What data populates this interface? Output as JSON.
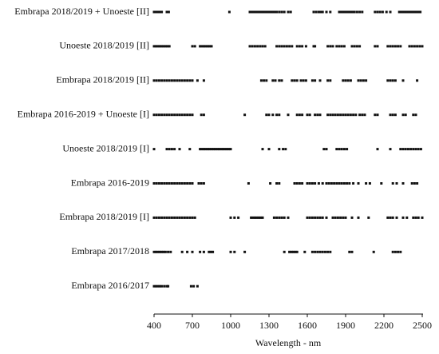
{
  "chart_data": {
    "type": "strip",
    "x_label": "Wavelength - nm",
    "xlim": [
      400,
      2500
    ],
    "xticks": [
      400,
      700,
      1000,
      1300,
      1600,
      1900,
      2200,
      2500
    ],
    "color": "#111111",
    "categories": [
      "Embrapa 2018/2019 + Unoeste [II]",
      "Unoeste 2018/2019 [II]",
      "Embrapa 2018/2019 [II]",
      "Embrapa 2016-2019 + Unoeste [I]",
      "Unoeste 2018/2019 [I]",
      "Embrapa 2016-2019",
      "Embrapa 2018/2019 [I]",
      "Embrapa 2017/2018",
      "Embrapa 2016/2017"
    ],
    "points": [
      [
        400,
        415,
        430,
        445,
        460,
        500,
        515,
        990,
        1150,
        1165,
        1180,
        1195,
        1210,
        1225,
        1240,
        1255,
        1270,
        1285,
        1300,
        1315,
        1330,
        1345,
        1360,
        1380,
        1400,
        1420,
        1450,
        1470,
        1650,
        1670,
        1690,
        1705,
        1720,
        1750,
        1780,
        1850,
        1865,
        1880,
        1895,
        1910,
        1925,
        1940,
        1955,
        1970,
        1990,
        2010,
        2030,
        2130,
        2150,
        2170,
        2190,
        2220,
        2250,
        2320,
        2335,
        2350,
        2365,
        2380,
        2395,
        2410,
        2425,
        2440,
        2455,
        2470,
        2485
      ],
      [
        400,
        415,
        430,
        445,
        460,
        475,
        490,
        505,
        520,
        700,
        720,
        760,
        775,
        790,
        805,
        820,
        835,
        850,
        1150,
        1170,
        1190,
        1210,
        1230,
        1250,
        1270,
        1360,
        1380,
        1400,
        1420,
        1440,
        1460,
        1480,
        1520,
        1540,
        1560,
        1590,
        1650,
        1660,
        1760,
        1780,
        1800,
        1830,
        1850,
        1870,
        1890,
        1950,
        1970,
        1990,
        2010,
        2130,
        2150,
        2230,
        2250,
        2270,
        2290,
        2310,
        2330,
        2400,
        2420,
        2440,
        2460,
        2480,
        2500
      ],
      [
        400,
        420,
        440,
        460,
        480,
        500,
        520,
        540,
        560,
        580,
        600,
        620,
        640,
        660,
        680,
        700,
        740,
        790,
        1240,
        1260,
        1280,
        1330,
        1350,
        1380,
        1400,
        1480,
        1500,
        1520,
        1550,
        1570,
        1590,
        1640,
        1660,
        1700,
        1760,
        1780,
        1880,
        1900,
        1920,
        1940,
        2000,
        2020,
        2040,
        2060,
        2230,
        2250,
        2270,
        2290,
        2350,
        2460
      ],
      [
        400,
        420,
        440,
        460,
        480,
        500,
        520,
        540,
        560,
        580,
        600,
        620,
        640,
        660,
        680,
        700,
        770,
        790,
        1110,
        1280,
        1300,
        1330,
        1360,
        1380,
        1450,
        1520,
        1540,
        1560,
        1600,
        1620,
        1660,
        1680,
        1700,
        1760,
        1780,
        1800,
        1820,
        1840,
        1860,
        1880,
        1900,
        1920,
        1940,
        1960,
        1980,
        2010,
        2030,
        2050,
        2130,
        2150,
        2250,
        2270,
        2290,
        2350,
        2370,
        2430,
        2450
      ],
      [
        400,
        500,
        520,
        540,
        560,
        600,
        680,
        760,
        775,
        790,
        805,
        820,
        835,
        850,
        865,
        880,
        895,
        910,
        925,
        940,
        955,
        970,
        985,
        1000,
        1250,
        1300,
        1380,
        1410,
        1430,
        1730,
        1750,
        1830,
        1850,
        1870,
        1890,
        1910,
        2150,
        2250,
        2330,
        2350,
        2370,
        2390,
        2410,
        2430,
        2450,
        2470,
        2490
      ],
      [
        400,
        420,
        440,
        460,
        480,
        500,
        520,
        540,
        560,
        580,
        600,
        620,
        640,
        660,
        680,
        700,
        750,
        770,
        790,
        1140,
        1310,
        1360,
        1380,
        1500,
        1520,
        1540,
        1560,
        1600,
        1620,
        1640,
        1660,
        1690,
        1720,
        1750,
        1770,
        1790,
        1810,
        1830,
        1850,
        1870,
        1890,
        1910,
        1930,
        1960,
        2000,
        2060,
        2090,
        2180,
        2270,
        2300,
        2350,
        2420,
        2440,
        2460
      ],
      [
        400,
        420,
        440,
        460,
        480,
        500,
        520,
        540,
        560,
        580,
        600,
        620,
        640,
        660,
        680,
        700,
        720,
        1000,
        1030,
        1060,
        1160,
        1175,
        1190,
        1205,
        1220,
        1235,
        1250,
        1340,
        1360,
        1380,
        1400,
        1420,
        1450,
        1600,
        1620,
        1640,
        1660,
        1680,
        1700,
        1720,
        1750,
        1800,
        1820,
        1840,
        1860,
        1880,
        1900,
        1950,
        2000,
        2080,
        2230,
        2250,
        2270,
        2300,
        2350,
        2380,
        2430,
        2450,
        2470,
        2500
      ],
      [
        400,
        415,
        430,
        445,
        460,
        475,
        490,
        510,
        530,
        620,
        660,
        700,
        760,
        790,
        830,
        845,
        860,
        1000,
        1030,
        1110,
        1420,
        1460,
        1475,
        1490,
        1505,
        1520,
        1580,
        1640,
        1660,
        1680,
        1700,
        1720,
        1740,
        1760,
        1780,
        1930,
        1950,
        2120,
        2270,
        2290,
        2310,
        2330
      ],
      [
        400,
        415,
        430,
        445,
        460,
        480,
        500,
        510,
        690,
        710,
        740
      ]
    ]
  }
}
